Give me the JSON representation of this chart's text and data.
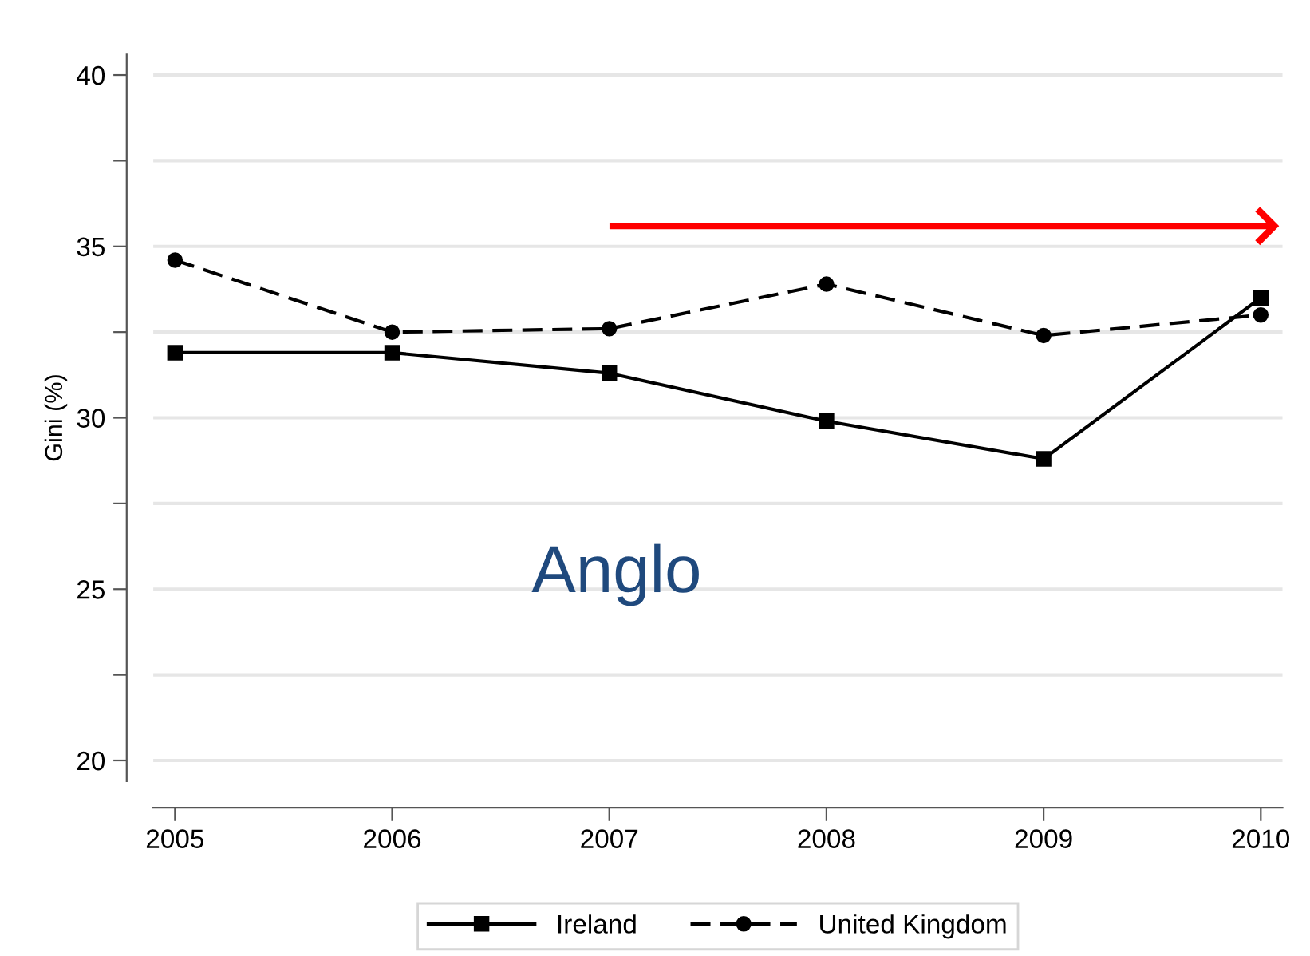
{
  "chart_data": {
    "type": "line",
    "ylabel": "Gini (%)",
    "x": [
      2005,
      2006,
      2007,
      2008,
      2009,
      2010
    ],
    "series": [
      {
        "name": "Ireland",
        "color": "#000000",
        "marker": "square",
        "line_style": "solid",
        "values": [
          31.9,
          31.9,
          31.3,
          29.9,
          28.8,
          33.5
        ]
      },
      {
        "name": "United Kingdom",
        "color": "#000000",
        "marker": "circle",
        "line_style": "dashed",
        "values": [
          34.6,
          32.5,
          32.6,
          33.9,
          32.4,
          33.0
        ]
      }
    ],
    "xlim": [
      2004.9,
      2010.1
    ],
    "xticks": [
      2005,
      2006,
      2007,
      2008,
      2009,
      2010
    ],
    "ylim": [
      19.4,
      40.6
    ],
    "yticks": [
      20,
      {
        "value": 22.5,
        "label": null
      },
      25,
      {
        "value": 27.5,
        "label": null
      },
      30,
      {
        "value": 32.5,
        "label": null
      },
      35,
      {
        "value": 37.5,
        "label": null
      },
      40
    ],
    "grid": "y",
    "legend": "bottom",
    "annotations": [
      "Anglo"
    ]
  }
}
